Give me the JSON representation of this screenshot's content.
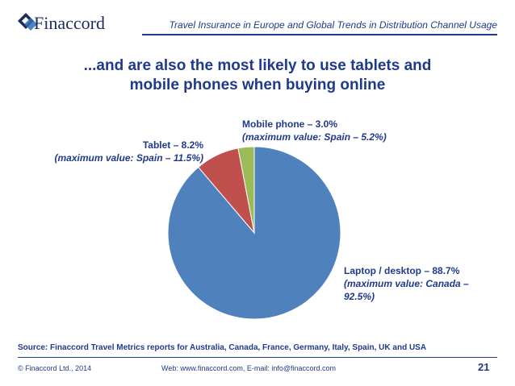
{
  "header": {
    "brand": "Finaccord",
    "title": "Travel Insurance in Europe and Global Trends in Distribution Channel Usage",
    "colors": {
      "brand_navy": "#1f3a8a",
      "logo_blue": "#2f6fb3"
    }
  },
  "slide": {
    "title_line1": "...and are also the most likely to use tablets and",
    "title_line2": "mobile phones when buying online"
  },
  "chart_data": {
    "type": "pie",
    "title": "",
    "slices": [
      {
        "name": "Laptop / desktop",
        "value": 88.7,
        "color": "#4f81bd",
        "label": "Laptop / desktop – 88.7%",
        "sub_label": "(maximum value: Canada – 92.5%)"
      },
      {
        "name": "Tablet",
        "value": 8.2,
        "color": "#c0504d",
        "label": "Tablet – 8.2%",
        "sub_label": "(maximum value: Spain – 11.5%)"
      },
      {
        "name": "Mobile phone",
        "value": 3.0,
        "color": "#9bbb59",
        "label": "Mobile phone – 3.0%",
        "sub_label": "(maximum value: Spain – 5.2%)"
      }
    ]
  },
  "footer": {
    "source": "Source: Finaccord Travel Metrics reports for Australia, Canada, France, Germany, Italy, Spain, UK and USA",
    "copyright": "© Finaccord Ltd., 2014",
    "web": "Web: www.finaccord.com, E-mail: info@finaccord.com",
    "page_number": "21"
  }
}
